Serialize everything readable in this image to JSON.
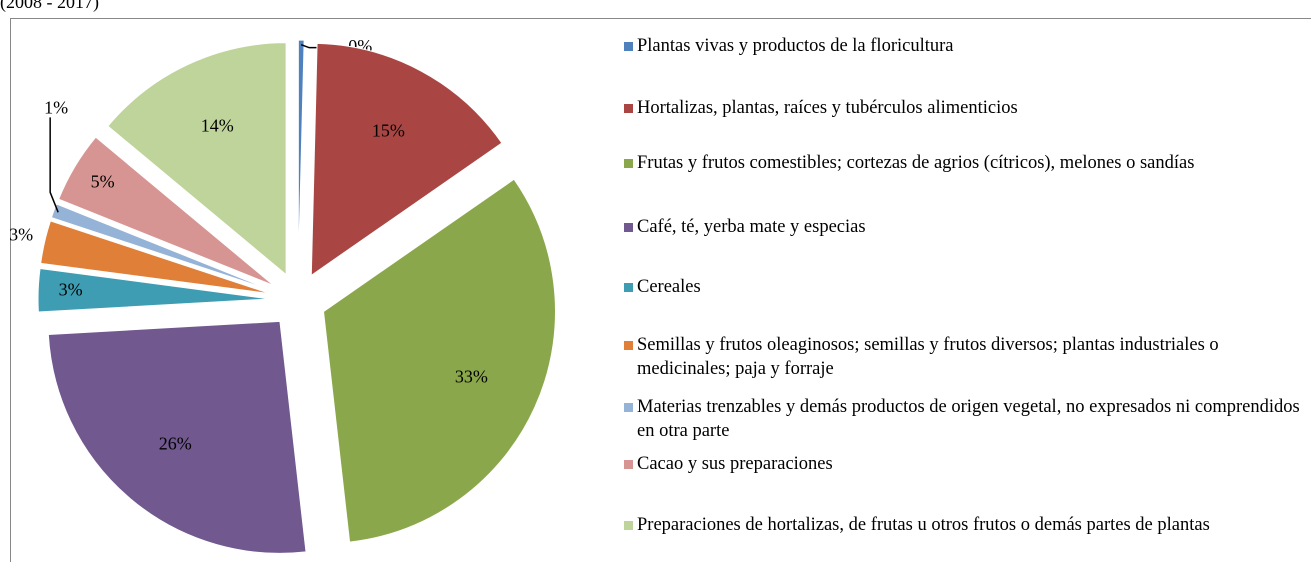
{
  "chart_data": {
    "type": "pie",
    "subtitle": "(2008 - 2017)",
    "categories": [
      "Plantas vivas y productos de la floricultura",
      "Hortalizas, plantas, raíces y tubérculos alimenticios",
      "Frutas y frutos comestibles; cortezas de agrios (cítricos), melones o sandías",
      "Café, té, yerba mate y especias",
      "Cereales",
      "Semillas y frutos oleaginosos; semillas y frutos diversos; plantas industriales o medicinales; paja y forraje",
      "Materias trenzables y demás productos de origen vegetal, no expresados ni comprendidos en otra parte",
      "Cacao y sus preparaciones",
      "Preparaciones de hortalizas, de frutas u otros frutos o demás partes de plantas"
    ],
    "values": [
      0.4,
      15,
      33,
      26,
      3,
      3,
      1,
      5,
      14
    ],
    "value_labels": [
      "0%",
      "15%",
      "33%",
      "26%",
      "3%",
      "3%",
      "1%",
      "5%",
      "14%"
    ],
    "colors": [
      "#4f81bd",
      "#a94643",
      "#8aa84b",
      "#71588f",
      "#3f9db3",
      "#e07f37",
      "#95b3d7",
      "#d69593",
      "#bed49a"
    ],
    "legend": "right"
  }
}
